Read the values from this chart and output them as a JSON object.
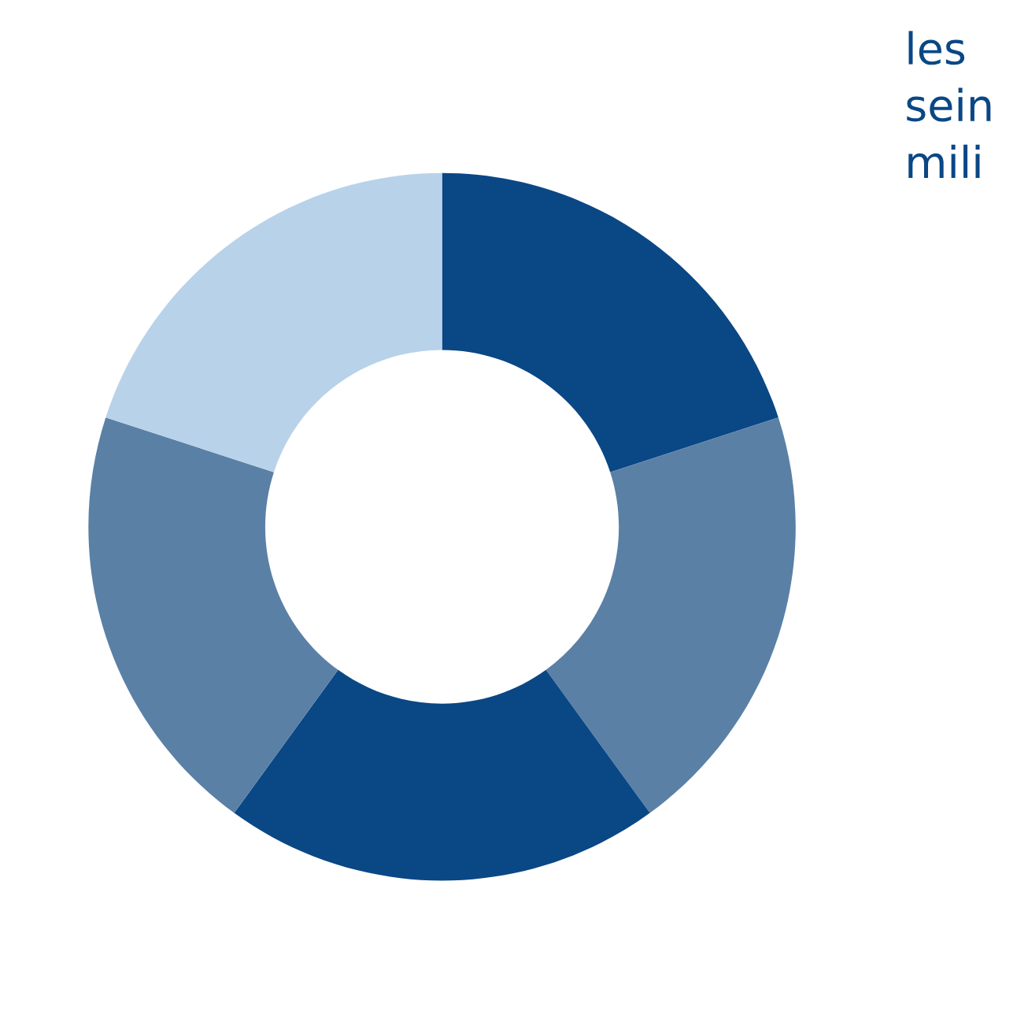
{
  "chart_data": {
    "type": "donut",
    "categories": [
      null,
      null,
      null,
      null,
      null
    ],
    "values": [
      20,
      20,
      20,
      20,
      20
    ],
    "colors": [
      "#0a4785",
      "#5b80a6",
      "#0a4785",
      "#5b80a6",
      "#b8d2ea"
    ],
    "annotations": [
      "les",
      "sein",
      "mili"
    ]
  }
}
